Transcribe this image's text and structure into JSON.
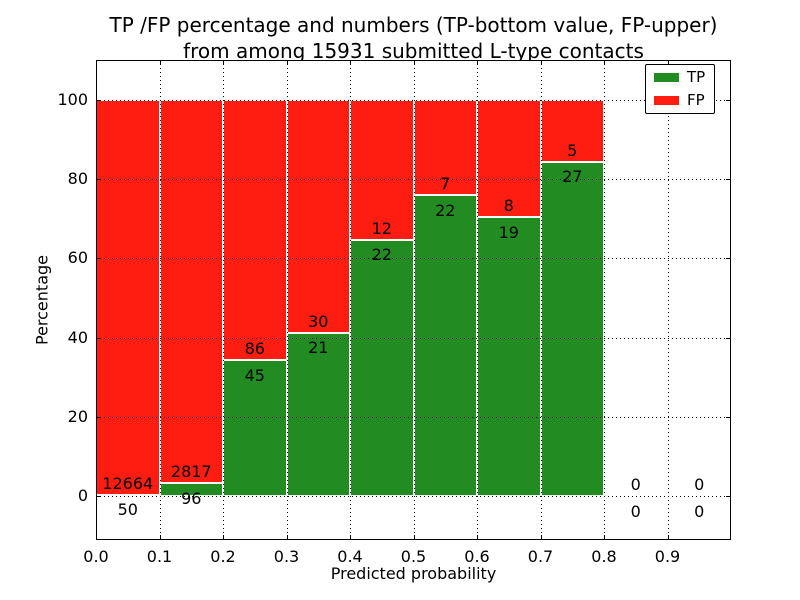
{
  "title": {
    "line1": "TP /FP percentage and numbers (TP-bottom value, FP-upper)",
    "line2": "from among 15931 submitted L-type contacts"
  },
  "axes": {
    "x_label": "Predicted probability",
    "y_label": "Percentage",
    "x_tick_labels": [
      "0.0",
      "0.1",
      "0.2",
      "0.3",
      "0.4",
      "0.5",
      "0.6",
      "0.7",
      "0.8",
      "0.9"
    ],
    "y_tick_labels": [
      "0",
      "20",
      "40",
      "60",
      "80",
      "100"
    ],
    "y_tick_values": [
      0,
      20,
      40,
      60,
      80,
      100
    ]
  },
  "legend": {
    "items": [
      {
        "label": "TP",
        "color": "#228b22"
      },
      {
        "label": "FP",
        "color": "#ff1d12"
      }
    ]
  },
  "chart_data": {
    "type": "bar",
    "stacked": true,
    "title": "TP /FP percentage and numbers (TP-bottom value, FP-upper) from among 15931 submitted L-type contacts",
    "xlabel": "Predicted probability",
    "ylabel": "Percentage",
    "xlim": [
      0.0,
      1.0
    ],
    "ylim": [
      -11,
      110
    ],
    "grid": true,
    "legend_position": "upper right",
    "bin_width": 0.1,
    "bin_starts": [
      0.0,
      0.1,
      0.2,
      0.3,
      0.4,
      0.5,
      0.6,
      0.7,
      0.8,
      0.9
    ],
    "bins": [
      "0.0-0.1",
      "0.1-0.2",
      "0.2-0.3",
      "0.3-0.4",
      "0.4-0.5",
      "0.5-0.6",
      "0.6-0.7",
      "0.7-0.8",
      "0.8-0.9",
      "0.9-1.0"
    ],
    "series": [
      {
        "name": "TP",
        "color": "#228b22",
        "counts": [
          50,
          96,
          45,
          21,
          22,
          22,
          19,
          27,
          0,
          0
        ]
      },
      {
        "name": "FP",
        "color": "#ff1d12",
        "counts": [
          12664,
          2817,
          86,
          30,
          12,
          7,
          8,
          5,
          0,
          0
        ]
      }
    ],
    "tp_percent": [
      0.39,
      3.3,
      34.35,
      41.18,
      64.71,
      75.86,
      70.37,
      84.38,
      null,
      null
    ],
    "total_contacts": 15931
  }
}
